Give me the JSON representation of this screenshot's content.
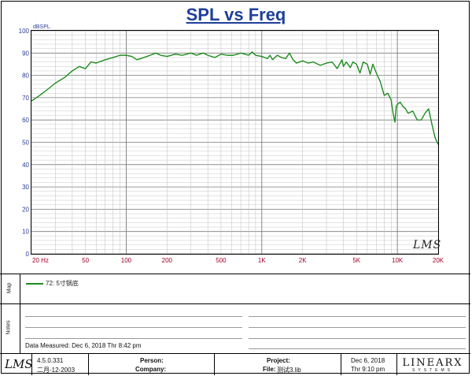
{
  "title": "SPL vs Freq",
  "chart_data": {
    "type": "line",
    "title": "SPL vs Freq",
    "ylabel": "dBSPL",
    "xlabel": "",
    "xscale": "log",
    "xlim": [
      20,
      20000
    ],
    "ylim": [
      0,
      100
    ],
    "grid": true,
    "x_tick_labels": [
      "20 Hz",
      "50",
      "100",
      "200",
      "500",
      "1K",
      "2K",
      "5K",
      "10K",
      "20K"
    ],
    "x_tick_values": [
      20,
      50,
      100,
      200,
      500,
      1000,
      2000,
      5000,
      10000,
      20000
    ],
    "y_tick_labels": [
      "0",
      "10",
      "20",
      "30",
      "40",
      "50",
      "60",
      "70",
      "80",
      "90",
      "100"
    ],
    "series": [
      {
        "name": "72: 5寸锅底",
        "color": "#1e8c1e",
        "x": [
          20,
          23,
          26,
          30,
          35,
          40,
          45,
          50,
          55,
          60,
          70,
          80,
          90,
          100,
          110,
          120,
          135,
          150,
          165,
          180,
          200,
          230,
          260,
          300,
          330,
          370,
          400,
          450,
          500,
          560,
          620,
          700,
          800,
          850,
          900,
          1000,
          1100,
          1150,
          1200,
          1300,
          1400,
          1500,
          1600,
          1700,
          1800,
          2000,
          2200,
          2400,
          2700,
          3000,
          3300,
          3600,
          3900,
          4000,
          4200,
          4500,
          4700,
          5000,
          5300,
          5600,
          6000,
          6300,
          6600,
          7000,
          7500,
          8000,
          8500,
          9000,
          9300,
          9600,
          9800,
          10000,
          10500,
          11000,
          11500,
          12000,
          13000,
          14000,
          15000,
          16000,
          17000,
          18000,
          19000,
          20000
        ],
        "y": [
          68.5,
          71,
          73.5,
          76.5,
          79,
          82,
          84,
          83,
          86,
          85.5,
          87,
          88,
          89,
          89,
          88.5,
          87,
          88,
          89,
          90,
          89,
          88.5,
          89.5,
          89,
          90,
          89,
          90,
          89,
          88,
          89.5,
          89,
          89,
          90,
          89,
          90.5,
          89,
          88.5,
          87.5,
          89,
          87,
          89,
          88,
          87.5,
          90,
          87,
          85.5,
          86.5,
          85.5,
          86,
          84.5,
          85.5,
          86,
          83,
          87,
          84,
          86,
          83.5,
          86,
          85,
          81,
          86,
          85,
          80.5,
          85,
          81,
          77,
          71,
          72,
          69,
          63,
          59,
          66,
          67,
          68,
          66,
          65,
          63,
          64,
          60,
          60,
          63,
          65,
          58,
          52,
          49
        ]
      }
    ]
  },
  "sections": {
    "map": "Map",
    "notes": "Notes"
  },
  "legend": {
    "entry": "72: 5寸锅底"
  },
  "notes_footer": "Data Measured: Dec  6, 2018   Thr  8:42 pm",
  "footer": {
    "logo": "LMS",
    "version": "4.5.0.331",
    "version_date": "二月-12-2003",
    "person_label": "Person:",
    "company_label": "Company:",
    "project_label": "Project:",
    "file_label": "File:",
    "file_value": "测试3.lib",
    "date": "Dec  6, 2018",
    "time": "Thr  9:10 pm",
    "brand": "LINEARX",
    "brand_sub": "SYSTEMS"
  },
  "chart_logo": "LMS"
}
